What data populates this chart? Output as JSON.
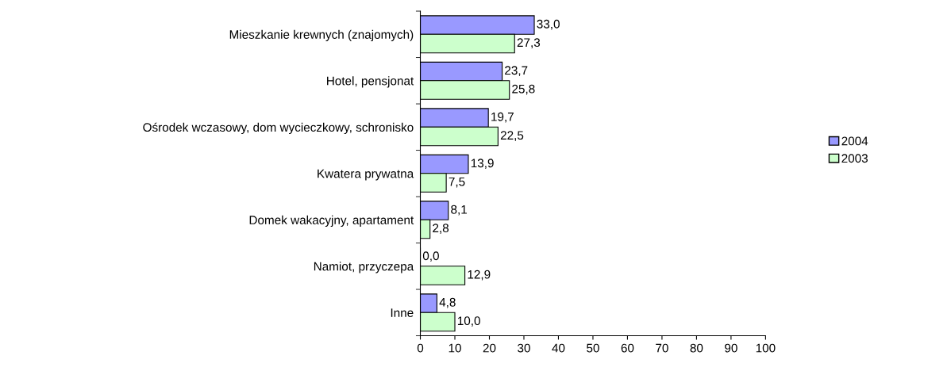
{
  "chart_data": {
    "type": "bar",
    "orientation": "horizontal",
    "categories": [
      "Mieszkanie krewnych (znajomych)",
      "Hotel, pensjonat",
      "Ośrodek wczasowy, dom wycieczkowy, schronisko",
      "Kwatera prywatna",
      "Domek wakacyjny, apartament",
      "Namiot, przyczepa",
      "Inne"
    ],
    "series": [
      {
        "name": "2004",
        "color": "#9999ff",
        "values": [
          33.0,
          23.7,
          19.7,
          13.9,
          8.1,
          0.0,
          4.8
        ],
        "value_labels": [
          "33,0",
          "23,7",
          "19,7",
          "13,9",
          "8,1",
          "0,0",
          "4,8"
        ]
      },
      {
        "name": "2003",
        "color": "#ccffcc",
        "values": [
          27.3,
          25.8,
          22.5,
          7.5,
          2.8,
          12.9,
          10.0
        ],
        "value_labels": [
          "27,3",
          "25,8",
          "22,5",
          "7,5",
          "2,8",
          "12,9",
          "10,0"
        ]
      }
    ],
    "xlim": [
      0,
      100
    ],
    "xticks": [
      0,
      10,
      20,
      30,
      40,
      50,
      60,
      70,
      80,
      90,
      100
    ],
    "grid": false,
    "legend": "right"
  }
}
